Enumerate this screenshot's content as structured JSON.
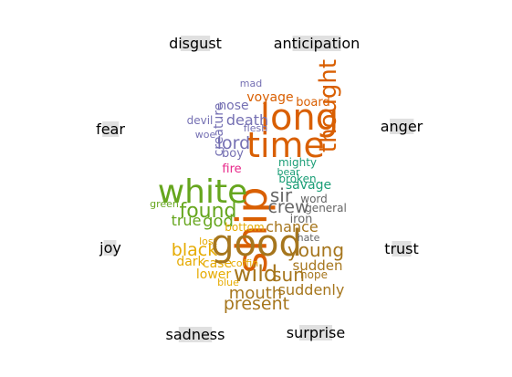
{
  "chart_data": {
    "type": "word_cloud",
    "emotion_labels": [
      {
        "id": "disgust",
        "text": "disgust"
      },
      {
        "id": "anticipation",
        "text": "anticipation"
      },
      {
        "id": "fear",
        "text": "fear"
      },
      {
        "id": "anger",
        "text": "anger"
      },
      {
        "id": "joy",
        "text": "joy"
      },
      {
        "id": "trust",
        "text": "trust"
      },
      {
        "id": "sadness",
        "text": "sadness"
      },
      {
        "id": "surprise",
        "text": "surprise"
      }
    ],
    "category_colors": {
      "anger": "#d95f02",
      "fear": "#7570b3",
      "joy": "#e7298a",
      "trust": "#1b9e77",
      "neutral": "#666666",
      "sadness": "#e6ab02",
      "anticipation": "#66a61e",
      "surprise": "#a6761d"
    },
    "words": [
      {
        "text": "ship",
        "category": "anger",
        "weight": 1.0
      },
      {
        "text": "long",
        "category": "anger",
        "weight": 0.78
      },
      {
        "text": "time",
        "category": "anger",
        "weight": 0.78
      },
      {
        "text": "thought",
        "category": "anger",
        "weight": 0.62
      },
      {
        "text": "voyage",
        "category": "anger",
        "weight": 0.3
      },
      {
        "text": "board",
        "category": "anger",
        "weight": 0.24
      },
      {
        "text": "mad",
        "category": "fear",
        "weight": 0.2
      },
      {
        "text": "nose",
        "category": "fear",
        "weight": 0.3
      },
      {
        "text": "devil",
        "category": "fear",
        "weight": 0.23
      },
      {
        "text": "death",
        "category": "fear",
        "weight": 0.34
      },
      {
        "text": "flesh",
        "category": "fear",
        "weight": 0.2
      },
      {
        "text": "woe",
        "category": "fear",
        "weight": 0.2
      },
      {
        "text": "lord",
        "category": "fear",
        "weight": 0.4
      },
      {
        "text": "boy",
        "category": "fear",
        "weight": 0.28
      },
      {
        "text": "creature",
        "category": "fear",
        "weight": 0.3
      },
      {
        "text": "fire",
        "category": "joy",
        "weight": 0.27
      },
      {
        "text": "mighty",
        "category": "trust",
        "weight": 0.24
      },
      {
        "text": "bear",
        "category": "trust",
        "weight": 0.22
      },
      {
        "text": "broken",
        "category": "trust",
        "weight": 0.22
      },
      {
        "text": "savage",
        "category": "trust",
        "weight": 0.29
      },
      {
        "text": "sir",
        "category": "neutral",
        "weight": 0.42
      },
      {
        "text": "word",
        "category": "neutral",
        "weight": 0.24
      },
      {
        "text": "crew",
        "category": "neutral",
        "weight": 0.39
      },
      {
        "text": "general",
        "category": "neutral",
        "weight": 0.24
      },
      {
        "text": "iron",
        "category": "neutral",
        "weight": 0.27
      },
      {
        "text": "white",
        "category": "anticipation",
        "weight": 0.78
      },
      {
        "text": "green",
        "category": "anticipation",
        "weight": 0.2
      },
      {
        "text": "found",
        "category": "anticipation",
        "weight": 0.45
      },
      {
        "text": "true",
        "category": "anticipation",
        "weight": 0.33
      },
      {
        "text": "god",
        "category": "anticipation",
        "weight": 0.37
      },
      {
        "text": "bottom",
        "category": "sadness",
        "weight": 0.24
      },
      {
        "text": "lost",
        "category": "sadness",
        "weight": 0.2
      },
      {
        "text": "black",
        "category": "sadness",
        "weight": 0.38
      },
      {
        "text": "dark",
        "category": "sadness",
        "weight": 0.3
      },
      {
        "text": "case",
        "category": "sadness",
        "weight": 0.26
      },
      {
        "text": "coffin",
        "category": "sadness",
        "weight": 0.22
      },
      {
        "text": "lower",
        "category": "sadness",
        "weight": 0.28
      },
      {
        "text": "blue",
        "category": "sadness",
        "weight": 0.21
      },
      {
        "text": "good",
        "category": "surprise",
        "weight": 0.88
      },
      {
        "text": "chance",
        "category": "surprise",
        "weight": 0.32
      },
      {
        "text": "young",
        "category": "surprise",
        "weight": 0.42
      },
      {
        "text": "wild",
        "category": "surprise",
        "weight": 0.5
      },
      {
        "text": "sun",
        "category": "surprise",
        "weight": 0.44
      },
      {
        "text": "sudden",
        "category": "surprise",
        "weight": 0.3
      },
      {
        "text": "hope",
        "category": "surprise",
        "weight": 0.23
      },
      {
        "text": "mouth",
        "category": "surprise",
        "weight": 0.36
      },
      {
        "text": "suddenly",
        "category": "surprise",
        "weight": 0.33
      },
      {
        "text": "present",
        "category": "surprise",
        "weight": 0.38
      },
      {
        "text": "hate",
        "category": "neutral",
        "weight": 0.2
      }
    ]
  }
}
